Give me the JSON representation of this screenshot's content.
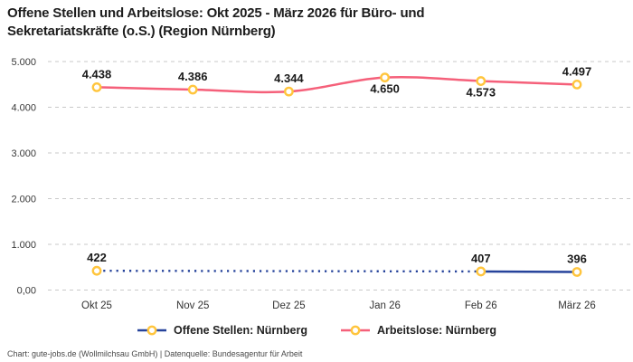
{
  "title": {
    "line1": "Offene Stellen und Arbeitslose: Okt 2025 - März 2026 für Büro- und",
    "line2": "Sekretariatskräfte (o.S.) (Region Nürnberg)"
  },
  "footer": {
    "text": "Chart: gute-jobs.de (Wollmilchsau GmbH) | Datenquelle: Bundesagentur für Arbeit"
  },
  "chart_data": {
    "type": "line",
    "title": "Offene Stellen und Arbeitslose: Okt 2025 - März 2026 für Büro- und Sekretariatskräfte (o.S.) (Region Nürnberg)",
    "categories": [
      "Okt 25",
      "Nov 25",
      "Dez 25",
      "Jan 26",
      "Feb 26",
      "März 26"
    ],
    "ylim": [
      0,
      5000
    ],
    "grid": "dashed-horizontal",
    "legend_position": "bottom",
    "y_ticks": [
      {
        "value": 5000,
        "label": "5.000"
      },
      {
        "value": 4000,
        "label": "4.000"
      },
      {
        "value": 3000,
        "label": "3.000"
      },
      {
        "value": 2000,
        "label": "2.000"
      },
      {
        "value": 1000,
        "label": "1.000"
      },
      {
        "value": 0,
        "label": "0,00"
      }
    ],
    "colors": {
      "grid": "#c9c9c9",
      "marker": "#ffc53d",
      "offene_stellen_line": "#26439b",
      "arbeitslose_line": "#f5607a"
    },
    "series": [
      {
        "name": "Offene Stellen: Nürnberg",
        "color": "#26439b",
        "values": [
          422,
          null,
          null,
          null,
          407,
          396
        ],
        "labels": [
          "422",
          "",
          "",
          "",
          "407",
          "396"
        ],
        "label_side": [
          "above",
          "",
          "",
          "",
          "above",
          "above"
        ],
        "marker_at": [
          0,
          4,
          5
        ],
        "segments": [
          {
            "from": 0,
            "to": 4,
            "style": "dotted"
          },
          {
            "from": 4,
            "to": 5,
            "style": "solid"
          }
        ],
        "smooth": false
      },
      {
        "name": "Arbeitslose: Nürnberg",
        "color": "#f5607a",
        "values": [
          4438,
          4386,
          4344,
          4650,
          4573,
          4497
        ],
        "labels": [
          "4.438",
          "4.386",
          "4.344",
          "4.650",
          "4.573",
          "4.497"
        ],
        "label_side": [
          "above",
          "above",
          "above",
          "below",
          "below",
          "above"
        ],
        "marker_at": [
          0,
          1,
          2,
          3,
          4,
          5
        ],
        "segments": [
          {
            "from": 0,
            "to": 5,
            "style": "solid"
          }
        ],
        "smooth": true
      }
    ]
  }
}
